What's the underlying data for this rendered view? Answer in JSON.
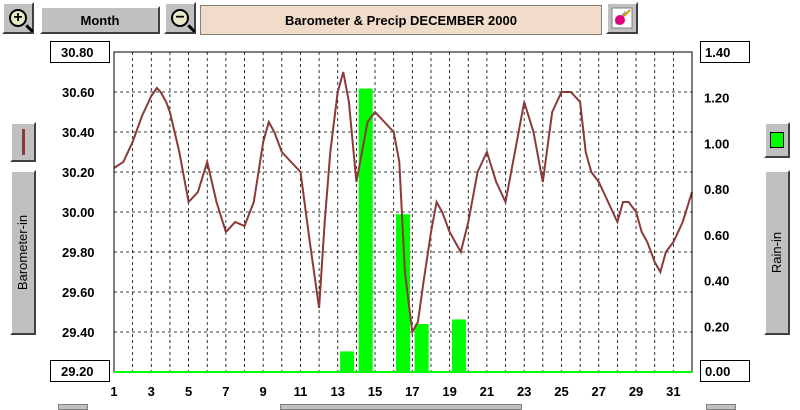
{
  "toolbar": {
    "zoom_in_icon": "plus-magnifier-icon",
    "zoom_out_icon": "minus-magnifier-icon",
    "period_label": "Month",
    "title": "Barometer & Precip  DECEMBER 2000",
    "settings_icon": "paint-brush-icon"
  },
  "left_panel": {
    "axis_button_label": "Barometer-in",
    "series_color": "#8b3a3a"
  },
  "right_panel": {
    "axis_button_label": "Rain-in",
    "series_color": "#00ff00"
  },
  "colors": {
    "barometer": "#8b3a3a",
    "rain": "#00ff00",
    "grid": "#000000"
  },
  "chart_data": {
    "type": "line+bar",
    "title": "Barometer & Precip  DECEMBER 2000",
    "x_ticks": [
      "1",
      "3",
      "5",
      "7",
      "9",
      "11",
      "13",
      "15",
      "17",
      "19",
      "21",
      "23",
      "25",
      "27",
      "29",
      "31"
    ],
    "xlim": [
      1,
      32
    ],
    "y_left": {
      "label": "Barometer-in",
      "range": [
        29.2,
        30.8
      ],
      "ticks": [
        "29.20",
        "29.40",
        "29.60",
        "29.80",
        "30.00",
        "30.20",
        "30.40",
        "30.60",
        "30.80"
      ]
    },
    "y_right": {
      "label": "Rain-in",
      "range": [
        0,
        1.4
      ],
      "ticks": [
        "0.00",
        "0.20",
        "0.40",
        "0.60",
        "0.80",
        "1.00",
        "1.20",
        "1.40"
      ]
    },
    "grid": true,
    "series": [
      {
        "type": "line",
        "axis": "left",
        "x": [
          1,
          1.5,
          2,
          2.5,
          3,
          3.3,
          3.5,
          3.8,
          4,
          4.5,
          5,
          5.5,
          6,
          6.5,
          7,
          7.5,
          8,
          8.5,
          9,
          9.3,
          9.6,
          10,
          10.5,
          11,
          11.5,
          12,
          12.3,
          12.6,
          13,
          13.3,
          13.6,
          14,
          14.3,
          14.6,
          15,
          15.5,
          16,
          16.3,
          16.6,
          17,
          17.3,
          17.6,
          18,
          18.3,
          18.6,
          19,
          19.3,
          19.6,
          20,
          20.5,
          21,
          21.5,
          22,
          22.5,
          23,
          23.5,
          24,
          24.5,
          25,
          25.5,
          26,
          26.3,
          26.6,
          27,
          27.5,
          28,
          28.3,
          28.6,
          29,
          29.3,
          29.6,
          30,
          30.3,
          30.6,
          31,
          31.5,
          32
        ],
        "y": [
          30.22,
          30.25,
          30.35,
          30.48,
          30.58,
          30.62,
          30.6,
          30.55,
          30.5,
          30.3,
          30.05,
          30.1,
          30.25,
          30.05,
          29.9,
          29.95,
          29.93,
          30.05,
          30.35,
          30.45,
          30.4,
          30.3,
          30.25,
          30.2,
          29.85,
          29.52,
          29.95,
          30.3,
          30.6,
          30.7,
          30.55,
          30.15,
          30.3,
          30.45,
          30.5,
          30.45,
          30.4,
          30.25,
          29.7,
          29.4,
          29.45,
          29.65,
          29.9,
          30.05,
          30.0,
          29.9,
          29.85,
          29.8,
          29.95,
          30.2,
          30.3,
          30.15,
          30.05,
          30.3,
          30.55,
          30.4,
          30.15,
          30.5,
          30.6,
          30.6,
          30.55,
          30.3,
          30.2,
          30.15,
          30.05,
          29.95,
          30.05,
          30.05,
          30.0,
          29.9,
          29.85,
          29.75,
          29.7,
          29.8,
          29.85,
          29.95,
          30.1
        ]
      },
      {
        "type": "bar",
        "axis": "right",
        "x": [
          13.5,
          14.5,
          16.5,
          17.5,
          19.5
        ],
        "values": [
          0.09,
          1.24,
          0.69,
          0.21,
          0.23
        ]
      }
    ]
  },
  "readouts": {
    "left_bottom": "29.20",
    "right_bottom": "0.00",
    "left_top": "30.80",
    "right_top": "1.40"
  }
}
